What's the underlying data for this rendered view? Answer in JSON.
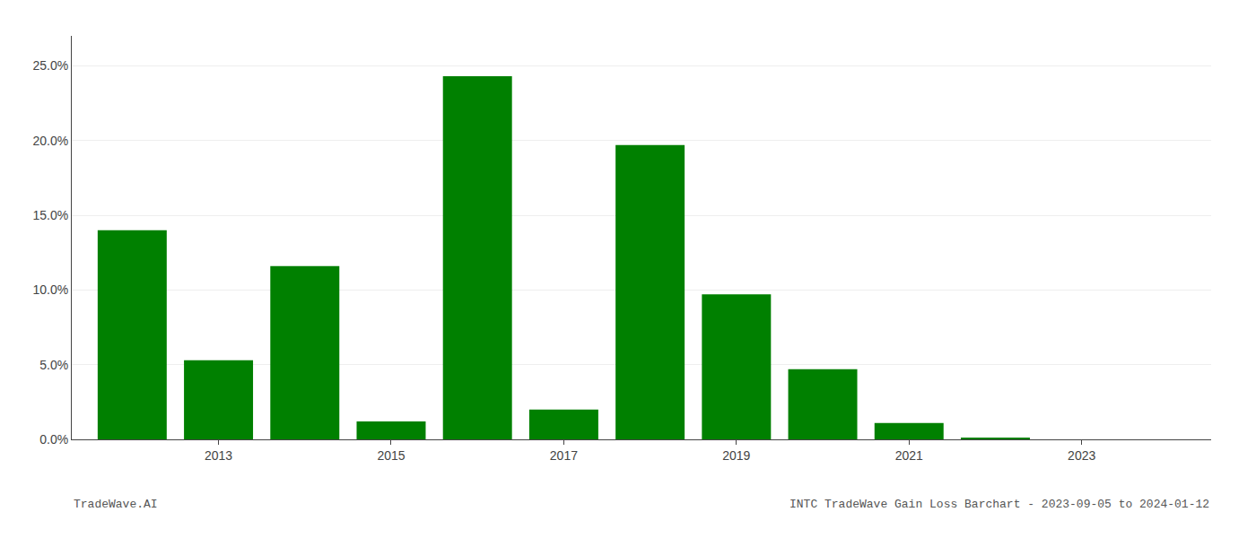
{
  "chart_data": {
    "type": "bar",
    "x": [
      2012,
      2013,
      2014,
      2015,
      2016,
      2017,
      2018,
      2019,
      2020,
      2021,
      2022
    ],
    "values": [
      0.14,
      0.053,
      0.116,
      0.012,
      0.243,
      0.02,
      0.197,
      0.097,
      0.047,
      0.011,
      0.001
    ],
    "color": "#008000",
    "xlim": [
      2011.3,
      2024.5
    ],
    "xticks": [
      2013,
      2015,
      2017,
      2019,
      2021,
      2023
    ],
    "ylim": [
      0,
      0.27
    ],
    "yticks": [
      {
        "value": 0.0,
        "label": "0.0%"
      },
      {
        "value": 0.05,
        "label": "5.0%"
      },
      {
        "value": 0.1,
        "label": "10.0%"
      },
      {
        "value": 0.15,
        "label": "15.0%"
      },
      {
        "value": 0.2,
        "label": "20.0%"
      },
      {
        "value": 0.25,
        "label": "25.0%"
      }
    ],
    "grid": "y",
    "annotations": [
      "TradeWave.AI",
      "INTC TradeWave Gain Loss Barchart - 2023-09-05 to 2024-01-12"
    ]
  }
}
